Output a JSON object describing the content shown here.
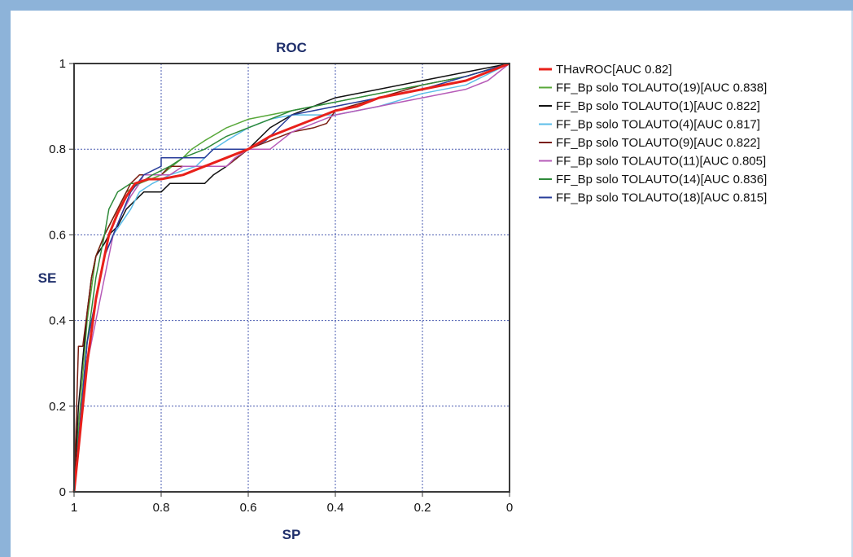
{
  "chart_data": {
    "type": "line",
    "title": "ROC",
    "xlabel": "SP",
    "ylabel": "SE",
    "xlim": [
      1,
      0
    ],
    "ylim": [
      0,
      1
    ],
    "x_ticks": [
      "1",
      "0.8",
      "0.6",
      "0.4",
      "0.2",
      "0"
    ],
    "y_ticks": [
      "0",
      "0.2",
      "0.4",
      "0.6",
      "0.8",
      "1"
    ],
    "grid": true,
    "legend_position": "right",
    "series": [
      {
        "name": "THavROC[AUC 0.82]",
        "color": "#e8201a",
        "width": 3,
        "points": [
          [
            1,
            0
          ],
          [
            0.99,
            0.1
          ],
          [
            0.97,
            0.3
          ],
          [
            0.95,
            0.45
          ],
          [
            0.93,
            0.55
          ],
          [
            0.92,
            0.6
          ],
          [
            0.9,
            0.65
          ],
          [
            0.88,
            0.69
          ],
          [
            0.86,
            0.72
          ],
          [
            0.83,
            0.73
          ],
          [
            0.8,
            0.73
          ],
          [
            0.75,
            0.74
          ],
          [
            0.7,
            0.76
          ],
          [
            0.65,
            0.78
          ],
          [
            0.6,
            0.8
          ],
          [
            0.55,
            0.83
          ],
          [
            0.5,
            0.85
          ],
          [
            0.45,
            0.87
          ],
          [
            0.4,
            0.89
          ],
          [
            0.35,
            0.9
          ],
          [
            0.3,
            0.92
          ],
          [
            0.2,
            0.94
          ],
          [
            0.1,
            0.96
          ],
          [
            0,
            1
          ]
        ]
      },
      {
        "name": "FF_Bp solo TOLAUTO(19)[AUC 0.838]",
        "color": "#58a83a",
        "width": 1.5,
        "points": [
          [
            1,
            0
          ],
          [
            0.99,
            0.15
          ],
          [
            0.97,
            0.4
          ],
          [
            0.95,
            0.55
          ],
          [
            0.93,
            0.6
          ],
          [
            0.92,
            0.62
          ],
          [
            0.9,
            0.66
          ],
          [
            0.88,
            0.7
          ],
          [
            0.85,
            0.72
          ],
          [
            0.8,
            0.74
          ],
          [
            0.75,
            0.78
          ],
          [
            0.73,
            0.8
          ],
          [
            0.7,
            0.82
          ],
          [
            0.65,
            0.85
          ],
          [
            0.6,
            0.87
          ],
          [
            0.55,
            0.88
          ],
          [
            0.5,
            0.89
          ],
          [
            0.45,
            0.9
          ],
          [
            0.4,
            0.91
          ],
          [
            0.3,
            0.93
          ],
          [
            0.2,
            0.95
          ],
          [
            0.1,
            0.97
          ],
          [
            0,
            1
          ]
        ]
      },
      {
        "name": "FF_Bp solo TOLAUTO(1)[AUC 0.822]",
        "color": "#111111",
        "width": 1.5,
        "points": [
          [
            1,
            0
          ],
          [
            0.99,
            0.2
          ],
          [
            0.97,
            0.42
          ],
          [
            0.96,
            0.5
          ],
          [
            0.95,
            0.55
          ],
          [
            0.93,
            0.58
          ],
          [
            0.92,
            0.6
          ],
          [
            0.9,
            0.62
          ],
          [
            0.88,
            0.66
          ],
          [
            0.86,
            0.68
          ],
          [
            0.84,
            0.7
          ],
          [
            0.8,
            0.7
          ],
          [
            0.78,
            0.72
          ],
          [
            0.7,
            0.72
          ],
          [
            0.68,
            0.74
          ],
          [
            0.65,
            0.76
          ],
          [
            0.6,
            0.8
          ],
          [
            0.55,
            0.85
          ],
          [
            0.5,
            0.88
          ],
          [
            0.45,
            0.9
          ],
          [
            0.4,
            0.92
          ],
          [
            0.3,
            0.94
          ],
          [
            0.2,
            0.96
          ],
          [
            0.1,
            0.98
          ],
          [
            0,
            1
          ]
        ]
      },
      {
        "name": "FF_Bp solo TOLAUTO(4)[AUC 0.817]",
        "color": "#5bbde8",
        "width": 1.5,
        "points": [
          [
            1,
            0
          ],
          [
            0.99,
            0.12
          ],
          [
            0.97,
            0.35
          ],
          [
            0.95,
            0.45
          ],
          [
            0.93,
            0.55
          ],
          [
            0.91,
            0.6
          ],
          [
            0.89,
            0.63
          ],
          [
            0.87,
            0.66
          ],
          [
            0.85,
            0.7
          ],
          [
            0.82,
            0.72
          ],
          [
            0.78,
            0.74
          ],
          [
            0.72,
            0.76
          ],
          [
            0.68,
            0.8
          ],
          [
            0.65,
            0.82
          ],
          [
            0.6,
            0.85
          ],
          [
            0.55,
            0.87
          ],
          [
            0.5,
            0.88
          ],
          [
            0.45,
            0.88
          ],
          [
            0.4,
            0.88
          ],
          [
            0.35,
            0.89
          ],
          [
            0.3,
            0.9
          ],
          [
            0.2,
            0.93
          ],
          [
            0.1,
            0.95
          ],
          [
            0,
            1
          ]
        ]
      },
      {
        "name": "FF_Bp solo TOLAUTO(9)[AUC 0.822]",
        "color": "#7a1e12",
        "width": 1.5,
        "points": [
          [
            1,
            0
          ],
          [
            0.99,
            0.34
          ],
          [
            0.98,
            0.34
          ],
          [
            0.97,
            0.42
          ],
          [
            0.96,
            0.5
          ],
          [
            0.95,
            0.55
          ],
          [
            0.93,
            0.6
          ],
          [
            0.91,
            0.64
          ],
          [
            0.89,
            0.68
          ],
          [
            0.87,
            0.72
          ],
          [
            0.85,
            0.74
          ],
          [
            0.8,
            0.74
          ],
          [
            0.78,
            0.76
          ],
          [
            0.65,
            0.76
          ],
          [
            0.6,
            0.8
          ],
          [
            0.55,
            0.82
          ],
          [
            0.5,
            0.84
          ],
          [
            0.45,
            0.85
          ],
          [
            0.42,
            0.86
          ],
          [
            0.4,
            0.89
          ],
          [
            0.3,
            0.92
          ],
          [
            0.2,
            0.95
          ],
          [
            0.1,
            0.97
          ],
          [
            0,
            1
          ]
        ]
      },
      {
        "name": "FF_Bp solo TOLAUTO(11)[AUC 0.805]",
        "color": "#b65bb8",
        "width": 1.5,
        "points": [
          [
            1,
            0
          ],
          [
            0.99,
            0.1
          ],
          [
            0.97,
            0.3
          ],
          [
            0.95,
            0.4
          ],
          [
            0.93,
            0.5
          ],
          [
            0.91,
            0.6
          ],
          [
            0.89,
            0.65
          ],
          [
            0.87,
            0.69
          ],
          [
            0.85,
            0.72
          ],
          [
            0.84,
            0.74
          ],
          [
            0.78,
            0.74
          ],
          [
            0.75,
            0.76
          ],
          [
            0.65,
            0.76
          ],
          [
            0.63,
            0.78
          ],
          [
            0.6,
            0.8
          ],
          [
            0.55,
            0.8
          ],
          [
            0.5,
            0.84
          ],
          [
            0.45,
            0.86
          ],
          [
            0.4,
            0.88
          ],
          [
            0.3,
            0.9
          ],
          [
            0.2,
            0.92
          ],
          [
            0.1,
            0.94
          ],
          [
            0.05,
            0.96
          ],
          [
            0,
            1
          ]
        ]
      },
      {
        "name": "FF_Bp solo TOLAUTO(14)[AUC 0.836]",
        "color": "#2e8a3a",
        "width": 1.5,
        "points": [
          [
            1,
            0
          ],
          [
            0.99,
            0.1
          ],
          [
            0.97,
            0.35
          ],
          [
            0.95,
            0.5
          ],
          [
            0.93,
            0.6
          ],
          [
            0.92,
            0.66
          ],
          [
            0.9,
            0.7
          ],
          [
            0.87,
            0.72
          ],
          [
            0.85,
            0.72
          ],
          [
            0.82,
            0.74
          ],
          [
            0.78,
            0.76
          ],
          [
            0.75,
            0.78
          ],
          [
            0.7,
            0.8
          ],
          [
            0.65,
            0.83
          ],
          [
            0.6,
            0.85
          ],
          [
            0.55,
            0.87
          ],
          [
            0.5,
            0.89
          ],
          [
            0.45,
            0.9
          ],
          [
            0.4,
            0.91
          ],
          [
            0.3,
            0.93
          ],
          [
            0.2,
            0.95
          ],
          [
            0.1,
            0.97
          ],
          [
            0,
            1
          ]
        ]
      },
      {
        "name": "FF_Bp solo TOLAUTO(18)[AUC 0.815]",
        "color": "#283d9a",
        "width": 1.5,
        "points": [
          [
            1,
            0
          ],
          [
            0.99,
            0.12
          ],
          [
            0.97,
            0.35
          ],
          [
            0.95,
            0.45
          ],
          [
            0.93,
            0.55
          ],
          [
            0.91,
            0.6
          ],
          [
            0.89,
            0.65
          ],
          [
            0.87,
            0.7
          ],
          [
            0.84,
            0.74
          ],
          [
            0.8,
            0.76
          ],
          [
            0.8,
            0.78
          ],
          [
            0.7,
            0.78
          ],
          [
            0.68,
            0.8
          ],
          [
            0.65,
            0.8
          ],
          [
            0.6,
            0.8
          ],
          [
            0.56,
            0.82
          ],
          [
            0.54,
            0.84
          ],
          [
            0.52,
            0.86
          ],
          [
            0.5,
            0.88
          ],
          [
            0.45,
            0.89
          ],
          [
            0.4,
            0.9
          ],
          [
            0.3,
            0.92
          ],
          [
            0.2,
            0.94
          ],
          [
            0.1,
            0.97
          ],
          [
            0,
            1
          ]
        ]
      }
    ]
  }
}
